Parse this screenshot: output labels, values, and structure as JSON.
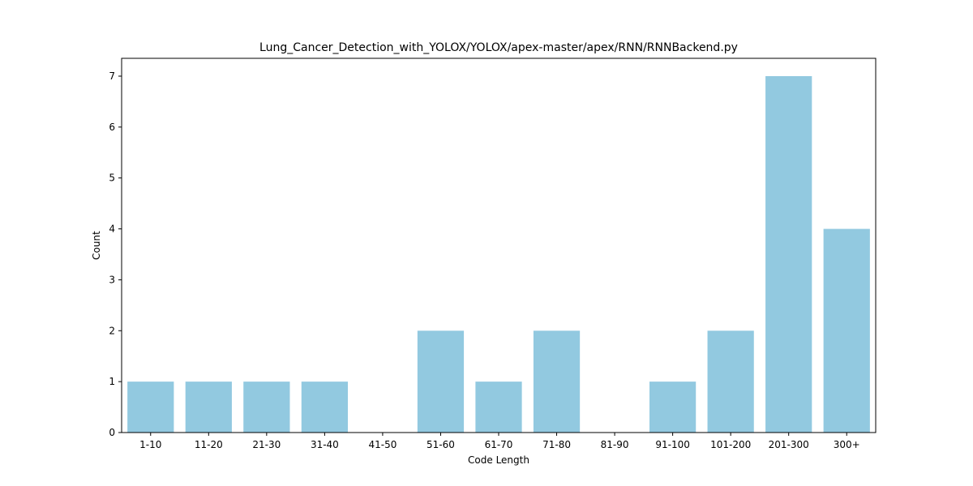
{
  "chart_data": {
    "type": "bar",
    "title": "Lung_Cancer_Detection_with_YOLOX/YOLOX/apex-master/apex/RNN/RNNBackend.py",
    "xlabel": "Code Length",
    "ylabel": "Count",
    "categories": [
      "1-10",
      "11-20",
      "21-30",
      "31-40",
      "41-50",
      "51-60",
      "61-70",
      "71-80",
      "81-90",
      "91-100",
      "101-200",
      "201-300",
      "300+"
    ],
    "values": [
      1,
      1,
      1,
      1,
      0,
      2,
      1,
      2,
      0,
      1,
      2,
      7,
      4
    ],
    "ylim": [
      0,
      7.35
    ],
    "yticks": [
      0,
      1,
      2,
      3,
      4,
      5,
      6,
      7
    ],
    "bar_color": "#92c9e0",
    "grid": false,
    "legend": "none"
  }
}
